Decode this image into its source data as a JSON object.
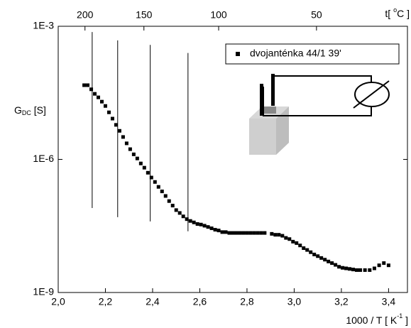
{
  "chart_data": {
    "type": "scatter",
    "xlabel": {
      "text": "1000 / T [ K",
      "sup": "-1",
      "end": " ]"
    },
    "ylabel": {
      "main": "G",
      "sub": "DC",
      "unit": " [S]"
    },
    "x2label": {
      "text": "t[ ",
      "sup": "o",
      "end": "C ]"
    },
    "xlim": [
      2.0,
      3.48
    ],
    "ylim": [
      1e-09,
      0.001
    ],
    "log_y": true,
    "xticks": [
      {
        "value": 2.0,
        "label": "2,0"
      },
      {
        "value": 2.2,
        "label": "2,2"
      },
      {
        "value": 2.4,
        "label": "2,4"
      },
      {
        "value": 2.6,
        "label": "2,6"
      },
      {
        "value": 2.8,
        "label": "2,8"
      },
      {
        "value": 3.0,
        "label": "3,0"
      },
      {
        "value": 3.2,
        "label": "3,2"
      },
      {
        "value": 3.4,
        "label": "3,4"
      }
    ],
    "yticks": [
      {
        "value": 1e-09,
        "label": "1E-9"
      },
      {
        "value": 1e-06,
        "label": "1E-6"
      },
      {
        "value": 0.001,
        "label": "1E-3"
      }
    ],
    "x2ticks": [
      200,
      150,
      100,
      50
    ],
    "legend_position": "upper right",
    "series": [
      {
        "name": "dvojanténka 44/1 39'",
        "color": "#000000",
        "x": [
          2.11,
          2.125,
          2.14,
          2.155,
          2.17,
          2.185,
          2.2,
          2.215,
          2.23,
          2.245,
          2.26,
          2.275,
          2.29,
          2.305,
          2.32,
          2.335,
          2.35,
          2.365,
          2.38,
          2.395,
          2.41,
          2.425,
          2.44,
          2.455,
          2.47,
          2.485,
          2.5,
          2.515,
          2.53,
          2.545,
          2.56,
          2.575,
          2.59,
          2.605,
          2.62,
          2.635,
          2.65,
          2.665,
          2.68,
          2.695,
          2.71,
          2.725,
          2.74,
          2.755,
          2.77,
          2.785,
          2.8,
          2.815,
          2.83,
          2.845,
          2.86,
          2.875,
          2.905,
          2.92,
          2.935,
          2.95,
          2.965,
          2.98,
          2.995,
          3.01,
          3.025,
          3.04,
          3.055,
          3.07,
          3.085,
          3.1,
          3.115,
          3.13,
          3.145,
          3.16,
          3.175,
          3.19,
          3.205,
          3.22,
          3.235,
          3.25,
          3.265,
          3.28,
          3.3,
          3.32,
          3.34,
          3.36,
          3.38,
          3.4
        ],
        "values": [
          4.7e-05,
          4.7e-05,
          3.8e-05,
          3e-05,
          2.5e-05,
          2e-05,
          1.6e-05,
          1.15e-05,
          8.3e-06,
          6e-06,
          4.4e-06,
          3.2e-06,
          2.3e-06,
          1.7e-06,
          1.3e-06,
          1.05e-06,
          8.1e-07,
          6.5e-07,
          5e-07,
          3.9e-07,
          3.1e-07,
          2.4e-07,
          1.9e-07,
          1.5e-07,
          1.15e-07,
          9.1e-08,
          7.2e-08,
          6.2e-08,
          5.2e-08,
          4.5e-08,
          4.1e-08,
          3.8e-08,
          3.5e-08,
          3.4e-08,
          3.2e-08,
          3e-08,
          2.8e-08,
          2.6e-08,
          2.5e-08,
          2.3e-08,
          2.3e-08,
          2.2e-08,
          2.2e-08,
          2.2e-08,
          2.2e-08,
          2.2e-08,
          2.2e-08,
          2.2e-08,
          2.2e-08,
          2.2e-08,
          2.2e-08,
          2.2e-08,
          2.1e-08,
          2e-08,
          2e-08,
          1.9e-08,
          1.7e-08,
          1.6e-08,
          1.4e-08,
          1.3e-08,
          1.15e-08,
          1e-08,
          9.1e-09,
          8.1e-09,
          7.2e-09,
          6.6e-09,
          6e-09,
          5.5e-09,
          5e-09,
          4.6e-09,
          4.2e-09,
          3.8e-09,
          3.6e-09,
          3.5e-09,
          3.4e-09,
          3.3e-09,
          3.2e-09,
          3.2e-09,
          3.2e-09,
          3.2e-09,
          3.5e-09,
          4.1e-09,
          4.6e-09,
          4.1e-09
        ]
      }
    ],
    "reference_lines": [
      {
        "x": 2.144,
        "y": [
          8e-08,
          0.00074
        ]
      },
      {
        "x": 2.252,
        "y": [
          5e-08,
          0.00048
        ]
      },
      {
        "x": 2.39,
        "y": [
          4e-08,
          0.00038
        ]
      },
      {
        "x": 2.55,
        "y": [
          2.4e-08,
          0.00025
        ]
      }
    ]
  }
}
